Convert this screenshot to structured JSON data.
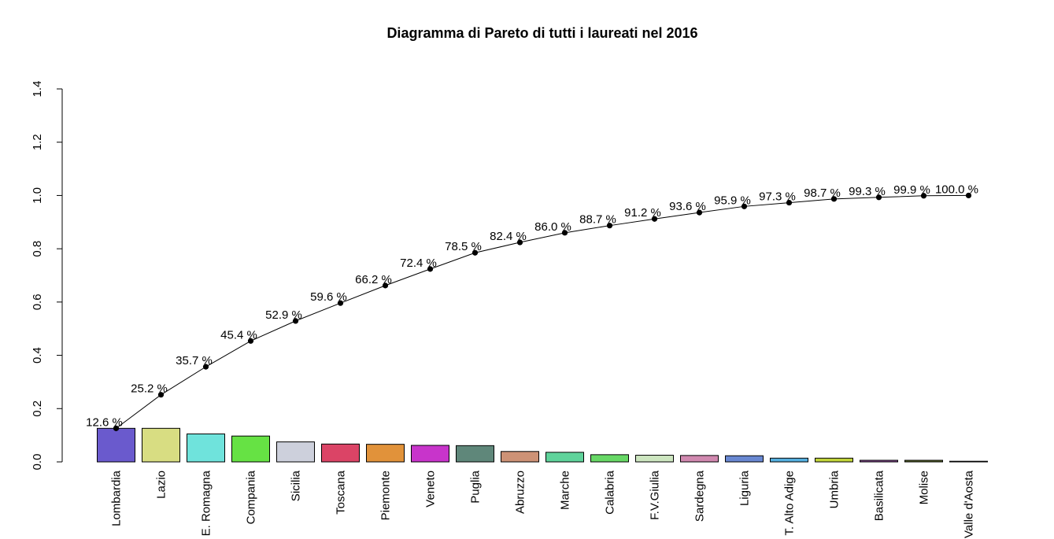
{
  "chart_data": {
    "type": "bar",
    "title": "Diagramma di Pareto di tutti i laureati nel 2016",
    "xlabel": "",
    "ylabel": "",
    "ylim": [
      0,
      1.4
    ],
    "yticks": [
      "0.0",
      "0.2",
      "0.4",
      "0.6",
      "0.8",
      "1.0",
      "1.2",
      "1.4"
    ],
    "grid": false,
    "categories": [
      "Lombardia",
      "Lazio",
      "E. Romagna",
      "Compania",
      "Sicilia",
      "Toscana",
      "Piemonte",
      "Veneto",
      "Puglia",
      "Abruzzo",
      "Marche",
      "Calabria",
      "F.V.Giulia",
      "Sardegna",
      "Liguria",
      "T. Alto Adige",
      "Umbria",
      "Basilicata",
      "Molise",
      "Valle d'Aosta"
    ],
    "values": [
      0.126,
      0.126,
      0.105,
      0.097,
      0.075,
      0.067,
      0.066,
      0.062,
      0.061,
      0.039,
      0.036,
      0.027,
      0.025,
      0.024,
      0.023,
      0.014,
      0.014,
      0.006,
      0.006,
      0.001
    ],
    "colors": [
      "#6a5acd",
      "#d8dd82",
      "#6fe3dc",
      "#66e244",
      "#cdd0dc",
      "#db4466",
      "#e1923a",
      "#c834cb",
      "#5f877a",
      "#cd9276",
      "#5fd39b",
      "#67d866",
      "#cde6c0",
      "#d189b0",
      "#6988d2",
      "#55b0e0",
      "#c2d53a",
      "#8f4b9c",
      "#5e6e2c",
      "#3c3c3c"
    ],
    "cumulative": {
      "values": [
        0.126,
        0.252,
        0.357,
        0.454,
        0.529,
        0.596,
        0.662,
        0.724,
        0.785,
        0.824,
        0.86,
        0.887,
        0.912,
        0.936,
        0.959,
        0.973,
        0.987,
        0.993,
        0.999,
        1.0
      ],
      "labels": [
        "12.6 %",
        "25.2 %",
        "35.7 %",
        "45.4 %",
        "52.9 %",
        "59.6 %",
        "66.2 %",
        "72.4 %",
        "78.5 %",
        "82.4 %",
        "86.0 %",
        "88.7 %",
        "91.2 %",
        "93.6 %",
        "95.9 %",
        "97.3 %",
        "98.7 %",
        "99.3 %",
        "99.9 %",
        "100.0 %"
      ]
    }
  }
}
